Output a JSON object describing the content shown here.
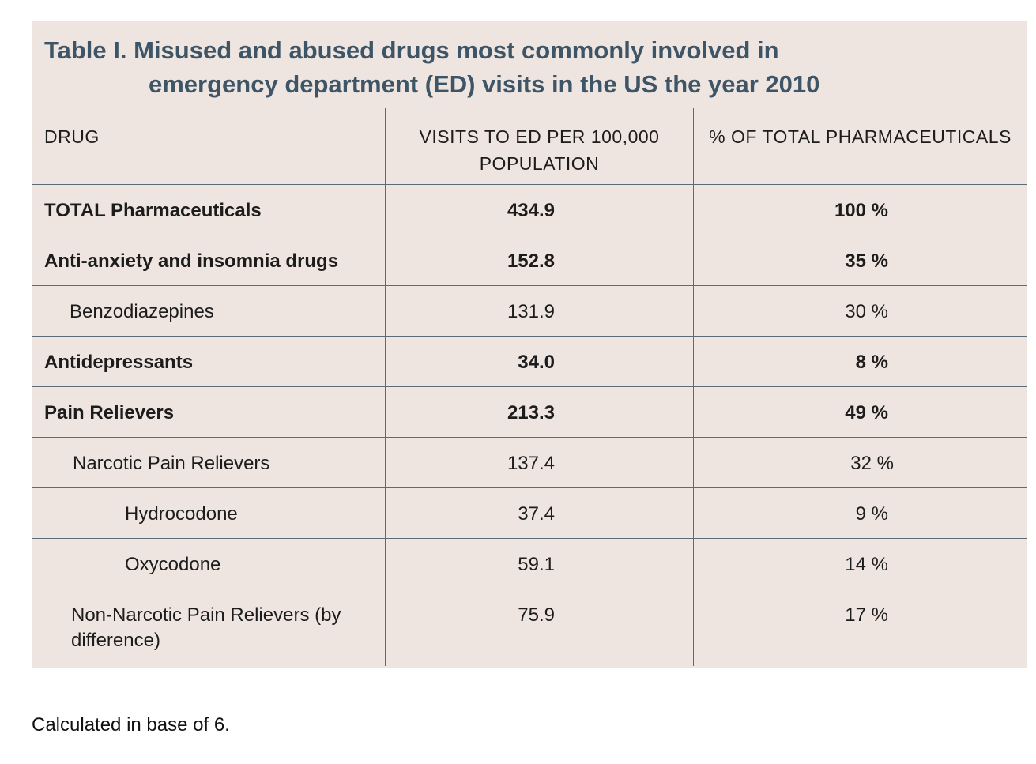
{
  "table": {
    "title_line1": "Table I. Misused and abused drugs most commonly involved in",
    "title_line2": "emergency department (ED) visits in the US the year 2010",
    "columns": [
      "DRUG",
      "VISITS TO ED PER 100,000 POPULATION",
      "% OF TOTAL PHARMACEUTICALS"
    ],
    "rows": [
      {
        "drug": "TOTAL Pharmaceuticals",
        "visits": "434.9",
        "percent": "100 %"
      },
      {
        "drug": "Anti-anxiety and insomnia drugs",
        "visits": "152.8",
        "percent": "35 %"
      },
      {
        "drug": "Benzodiazepines",
        "visits": "131.9",
        "percent": "30 %"
      },
      {
        "drug": "Antidepressants",
        "visits": "34.0",
        "percent": "8 %"
      },
      {
        "drug": "Pain Relievers",
        "visits": "213.3",
        "percent": "49 %"
      },
      {
        "drug": "Narcotic Pain Relievers",
        "visits": "137.4",
        "percent": "32 %"
      },
      {
        "drug": "Hydrocodone",
        "visits": "37.4",
        "percent": "9 %"
      },
      {
        "drug": "Oxycodone",
        "visits": "59.1",
        "percent": "14 %"
      },
      {
        "drug": "Non-Narcotic Pain Relievers (by difference)",
        "visits": "75.9",
        "percent": "17 %"
      }
    ]
  },
  "footnote": "Calculated in base of 6.",
  "colors": {
    "panel_background": "#efe5e0",
    "title_text": "#3d5566",
    "rule": "#5b6b78"
  }
}
